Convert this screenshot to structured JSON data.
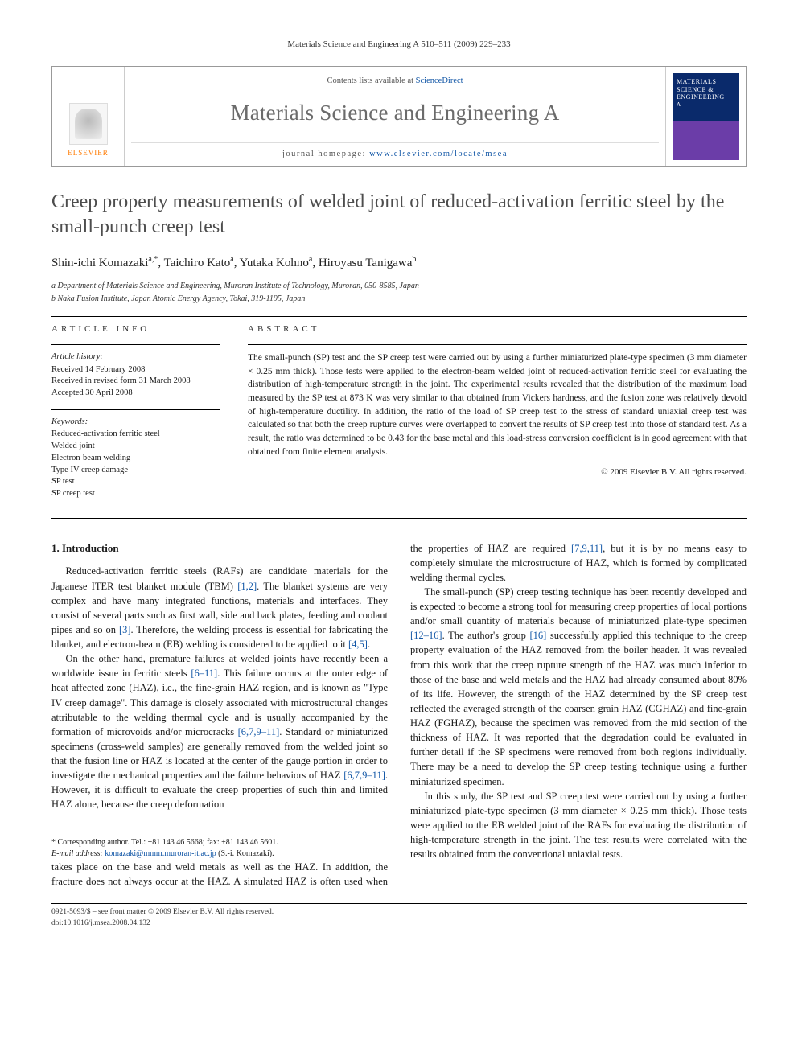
{
  "running_head": "Materials Science and Engineering A 510–511 (2009) 229–233",
  "journal_box": {
    "contents_prefix": "Contents lists available at ",
    "contents_link": "ScienceDirect",
    "journal_name": "Materials Science and Engineering A",
    "homepage_prefix": "journal homepage: ",
    "homepage_link": "www.elsevier.com/locate/msea",
    "publisher": "ELSEVIER",
    "cover_title": "MATERIALS SCIENCE & ENGINEERING",
    "cover_sub": "A"
  },
  "title": "Creep property measurements of welded joint of reduced-activation ferritic steel by the small-punch creep test",
  "authors_html": "Shin-ichi Komazaki<sup>a,*</sup>, Taichiro Kato<sup>a</sup>, Yutaka Kohno<sup>a</sup>, Hiroyasu Tanigawa<sup>b</sup>",
  "affiliations": {
    "a": "a Department of Materials Science and Engineering, Muroran Institute of Technology, Muroran, 050-8585, Japan",
    "b": "b Naka Fusion Institute, Japan Atomic Energy Agency, Tokai, 319-1195, Japan"
  },
  "article_info": {
    "heading": "ARTICLE INFO",
    "history_title": "Article history:",
    "history": [
      "Received 14 February 2008",
      "Received in revised form 31 March 2008",
      "Accepted 30 April 2008"
    ],
    "keywords_title": "Keywords:",
    "keywords": [
      "Reduced-activation ferritic steel",
      "Welded joint",
      "Electron-beam welding",
      "Type IV creep damage",
      "SP test",
      "SP creep test"
    ]
  },
  "abstract": {
    "heading": "ABSTRACT",
    "text": "The small-punch (SP) test and the SP creep test were carried out by using a further miniaturized plate-type specimen (3 mm diameter × 0.25 mm thick). Those tests were applied to the electron-beam welded joint of reduced-activation ferritic steel for evaluating the distribution of high-temperature strength in the joint. The experimental results revealed that the distribution of the maximum load measured by the SP test at 873 K was very similar to that obtained from Vickers hardness, and the fusion zone was relatively devoid of high-temperature ductility. In addition, the ratio of the load of SP creep test to the stress of standard uniaxial creep test was calculated so that both the creep rupture curves were overlapped to convert the results of SP creep test into those of standard test. As a result, the ratio was determined to be 0.43 for the base metal and this load-stress conversion coefficient is in good agreement with that obtained from finite element analysis.",
    "copyright": "© 2009 Elsevier B.V. All rights reserved."
  },
  "section1": {
    "heading": "1. Introduction",
    "p1_a": "Reduced-activation ferritic steels (RAFs) are candidate materials for the Japanese ITER test blanket module (TBM) ",
    "p1_ref1": "[1,2]",
    "p1_b": ". The blanket systems are very complex and have many integrated functions, materials and interfaces. They consist of several parts such as first wall, side and back plates, feeding and coolant pipes and so on ",
    "p1_ref2": "[3]",
    "p1_c": ". Therefore, the welding process is essential for fabricating the blanket, and electron-beam (EB) welding is considered to be applied to it ",
    "p1_ref3": "[4,5]",
    "p1_d": ".",
    "p2_a": "On the other hand, premature failures at welded joints have recently been a worldwide issue in ferritic steels ",
    "p2_ref1": "[6–11]",
    "p2_b": ". This failure occurs at the outer edge of heat affected zone (HAZ), i.e., the fine-grain HAZ region, and is known as \"Type IV creep damage\". This damage is closely associated with microstructural changes attributable to the welding thermal cycle and is usually accompanied by the formation of microvoids and/or microcracks ",
    "p2_ref2": "[6,7,9–11]",
    "p2_c": ". Standard or miniaturized specimens (cross-weld samples) are generally removed from the welded joint so that the fusion line or HAZ is located at the center of the gauge portion in order to investigate the mechanical properties and the failure behaviors of HAZ ",
    "p2_ref3": "[6,7,9–11]",
    "p2_d": ". However, it is difficult to evaluate the creep properties of such thin and limited HAZ alone, because the creep deformation",
    "p3_a": "takes place on the base and weld metals as well as the HAZ. In addition, the fracture does not always occur at the HAZ. A simulated HAZ is often used when the properties of HAZ are required ",
    "p3_ref1": "[7,9,11]",
    "p3_b": ", but it is by no means easy to completely simulate the microstructure of HAZ, which is formed by complicated welding thermal cycles.",
    "p4_a": "The small-punch (SP) creep testing technique has been recently developed and is expected to become a strong tool for measuring creep properties of local portions and/or small quantity of materials because of miniaturized plate-type specimen ",
    "p4_ref1": "[12–16]",
    "p4_b": ". The author's group ",
    "p4_ref2": "[16]",
    "p4_c": " successfully applied this technique to the creep property evaluation of the HAZ removed from the boiler header. It was revealed from this work that the creep rupture strength of the HAZ was much inferior to those of the base and weld metals and the HAZ had already consumed about 80% of its life. However, the strength of the HAZ determined by the SP creep test reflected the averaged strength of the coarsen grain HAZ (CGHAZ) and fine-grain HAZ (FGHAZ), because the specimen was removed from the mid section of the thickness of HAZ. It was reported that the degradation could be evaluated in further detail if the SP specimens were removed from both regions individually. There may be a need to develop the SP creep testing technique using a further miniaturized specimen.",
    "p5": "In this study, the SP test and SP creep test were carried out by using a further miniaturized plate-type specimen (3 mm diameter × 0.25 mm thick). Those tests were applied to the EB welded joint of the RAFs for evaluating the distribution of high-temperature strength in the joint. The test results were correlated with the results obtained from the conventional uniaxial tests."
  },
  "footnotes": {
    "corr": "* Corresponding author. Tel.: +81 143 46 5668; fax: +81 143 46 5601.",
    "email_label": "E-mail address: ",
    "email": "komazaki@mmm.muroran-it.ac.jp",
    "email_tail": " (S.-i. Komazaki)."
  },
  "bottom": {
    "line1": "0921-5093/$ – see front matter © 2009 Elsevier B.V. All rights reserved.",
    "line2": "doi:10.1016/j.msea.2008.04.132"
  },
  "colors": {
    "link": "#1156a6",
    "orange": "#ff7a00",
    "title_gray": "#4d4d4d"
  }
}
